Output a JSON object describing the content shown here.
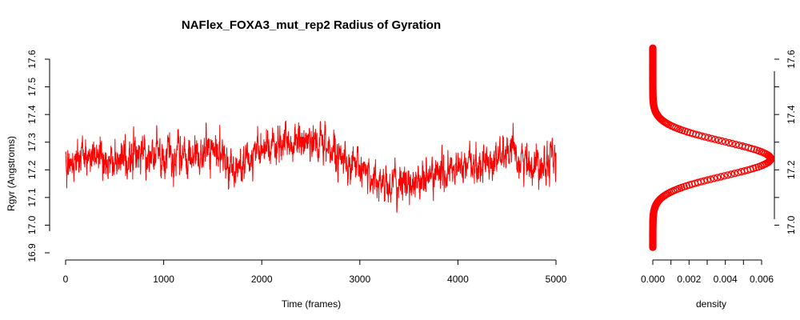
{
  "chart_data": [
    {
      "type": "line",
      "title": "NAFlex_FOXA3_mut_rep2 Radius of Gyration",
      "xlabel": "Time (frames)",
      "ylabel": "Rgyr (Angstroms)",
      "xlim": [
        0,
        5000
      ],
      "ylim": [
        16.9,
        17.6
      ],
      "x_ticks": [
        "0",
        "1000",
        "2000",
        "3000",
        "4000",
        "5000"
      ],
      "y_ticks": [
        "16.9",
        "17.0",
        "17.1",
        "17.2",
        "17.3",
        "17.4",
        "17.5",
        "17.6"
      ],
      "line_color": "#ff0000",
      "grid": false,
      "series": [
        {
          "x": [
            0,
            250,
            500,
            750,
            1000,
            1250,
            1500,
            1750,
            2000,
            2250,
            2500,
            2750,
            3000,
            3250,
            3500,
            3750,
            4000,
            4250,
            4500,
            4750,
            5000
          ],
          "values": [
            17.22,
            17.27,
            17.22,
            17.26,
            17.25,
            17.24,
            17.27,
            17.2,
            17.27,
            17.29,
            17.31,
            17.27,
            17.2,
            17.15,
            17.15,
            17.18,
            17.2,
            17.22,
            17.26,
            17.22,
            17.25
          ],
          "noise_amplitude": 0.07
        }
      ]
    },
    {
      "type": "line",
      "title": "",
      "xlabel": "density",
      "ylabel": "",
      "xlim": [
        0,
        0.006
      ],
      "ylim": [
        16.9,
        17.6
      ],
      "x_ticks": [
        "0.000",
        "0.002",
        "0.004",
        "0.006"
      ],
      "y_ticks": [
        "17.0",
        "17.2",
        "17.4",
        "17.6"
      ],
      "y_axis_side": "right",
      "marker_color": "#ff0000",
      "grid": false,
      "series": [
        {
          "distribution": "normal",
          "mean": 17.24,
          "sd": 0.062,
          "peak_density": 0.0065,
          "range": [
            16.92,
            17.64
          ]
        }
      ]
    }
  ]
}
